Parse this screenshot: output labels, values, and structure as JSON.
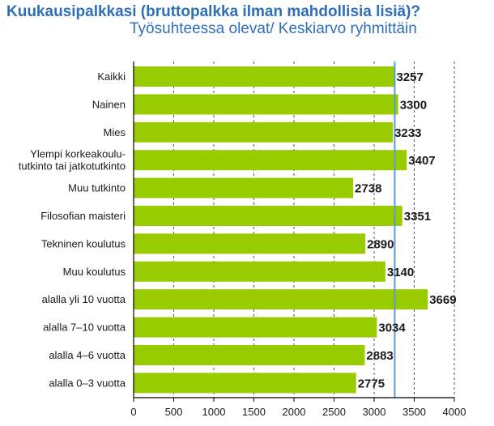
{
  "title_line1": "Kuukausipalkkasi (bruttopalkka ilman mahdollisia lisiä)?",
  "title_line2": "Työsuhteessa olevat/ Keskiarvo ryhmittäin",
  "colors": {
    "bar": "#99cc00",
    "reference_line": "#5b9bd5",
    "title": "#2f6fb7"
  },
  "chart_data": {
    "type": "bar",
    "orientation": "horizontal",
    "title": "Kuukausipalkkasi (bruttopalkka ilman mahdollisia lisiä)? Työsuhteessa olevat/ Keskiarvo ryhmittäin",
    "categories": [
      [
        "Kaikki"
      ],
      [
        "Nainen"
      ],
      [
        "Mies"
      ],
      [
        "Ylempi korkeakoulu-",
        "tutkinto tai jatkotutkinto"
      ],
      [
        "Muu tutkinto"
      ],
      [
        "Filosofian maisteri"
      ],
      [
        "Tekninen koulutus"
      ],
      [
        "Muu koulutus"
      ],
      [
        "alalla yli 10 vuotta"
      ],
      [
        "alalla 7–10 vuotta"
      ],
      [
        "alalla 4–6 vuotta"
      ],
      [
        "alalla 0–3 vuotta"
      ]
    ],
    "values": [
      3257,
      3300,
      3233,
      3407,
      2738,
      3351,
      2890,
      3140,
      3669,
      3034,
      2883,
      2775
    ],
    "reference_value": 3257,
    "xlim": [
      0,
      4000
    ],
    "xticks": [
      0,
      500,
      1000,
      1500,
      2000,
      2500,
      3000,
      3500,
      4000
    ],
    "gridlines": [
      500,
      1000,
      1500,
      2000,
      2500,
      3000,
      3500,
      4000
    ],
    "grid_style": "dashed",
    "legend": "none"
  }
}
